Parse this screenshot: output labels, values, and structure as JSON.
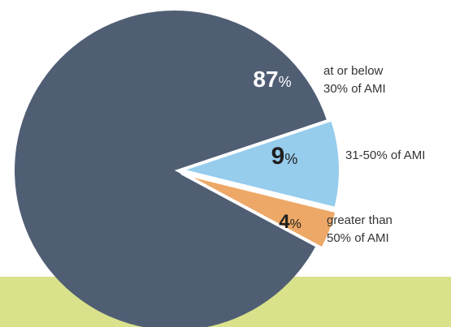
{
  "chart_data": {
    "type": "pie",
    "title": "",
    "slices": [
      {
        "id": "low",
        "value": 87,
        "value_text": "87",
        "percent_sign": "%",
        "label_lines": [
          "at or below",
          "30% of AMI"
        ],
        "color": "#505E74"
      },
      {
        "id": "mid",
        "value": 9,
        "value_text": "9",
        "percent_sign": "%",
        "label_lines": [
          "31-50% of AMI"
        ],
        "color": "#96CCEC"
      },
      {
        "id": "high",
        "value": 4,
        "value_text": "4",
        "percent_sign": "%",
        "label_lines": [
          "greater than",
          "50% of AMI"
        ],
        "color": "#EDA867"
      }
    ],
    "colors": {
      "separator": "#FFFFFF",
      "value_text": "#1F1F1F",
      "value_text_on_dark": "#FFFFFF",
      "label_text": "#333333",
      "band": "#D9E28B"
    }
  }
}
